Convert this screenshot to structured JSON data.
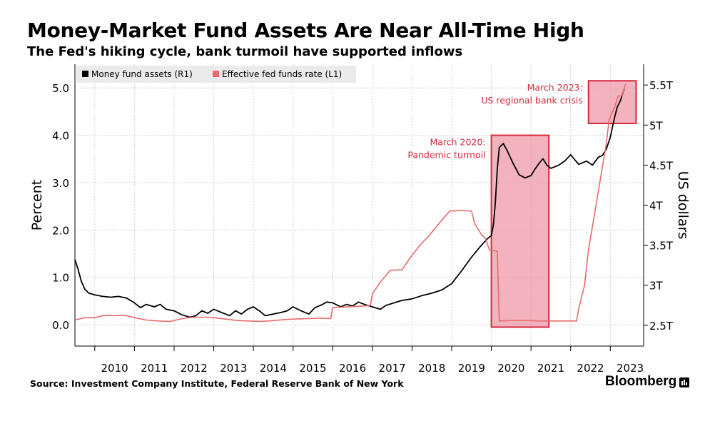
{
  "header": {
    "title": "Money-Market Fund Assets Are Near All-Time High",
    "subtitle": "The Fed's hiking cycle, bank turmoil have supported inflows"
  },
  "footer": {
    "source": "Source: Investment Company Institute, Federal Reserve Bank of New York",
    "brand": "Bloomberg"
  },
  "colors": {
    "assets_line": "#000000",
    "rate_line": "#e86a6a",
    "highlight_fill": "#ee9aaa",
    "highlight_stroke": "#d6283c",
    "annotation_text": "#d6283c",
    "grid": "#cfcfcf",
    "legend_bg": "#ebebeb"
  },
  "chart_data": {
    "type": "line",
    "x_ticks": [
      "2010",
      "2011",
      "2012",
      "2013",
      "2014",
      "2015",
      "2016",
      "2017",
      "2018",
      "2019",
      "2020",
      "2021",
      "2022",
      "2023"
    ],
    "left_axis": {
      "label": "Percent",
      "ticks": [
        "0.0",
        "1.0",
        "2.0",
        "3.0",
        "4.0",
        "5.0"
      ],
      "range": [
        -0.45,
        5.5
      ]
    },
    "right_axis": {
      "label": "US dollars",
      "ticks": [
        "2.5T",
        "3T",
        "3.5T",
        "4T",
        "4.5T",
        "5T",
        "5.5T"
      ],
      "range": [
        2.24,
        5.76
      ]
    },
    "legend": [
      {
        "name": "Money fund assets (R1)",
        "color": "#000000"
      },
      {
        "name": "Effective fed funds rate  (L1)",
        "color": "#e86a6a"
      }
    ],
    "grid": true,
    "legend_position": "top-left",
    "series": [
      {
        "name": "Money fund assets (R1)",
        "axis": "right",
        "points": [
          [
            2009.5,
            3.32
          ],
          [
            2009.58,
            3.2
          ],
          [
            2009.66,
            3.05
          ],
          [
            2009.75,
            2.95
          ],
          [
            2009.85,
            2.9
          ],
          [
            2010.0,
            2.88
          ],
          [
            2010.2,
            2.86
          ],
          [
            2010.4,
            2.85
          ],
          [
            2010.6,
            2.86
          ],
          [
            2010.8,
            2.84
          ],
          [
            2011.0,
            2.78
          ],
          [
            2011.15,
            2.72
          ],
          [
            2011.3,
            2.76
          ],
          [
            2011.5,
            2.73
          ],
          [
            2011.65,
            2.76
          ],
          [
            2011.8,
            2.7
          ],
          [
            2012.0,
            2.68
          ],
          [
            2012.2,
            2.63
          ],
          [
            2012.4,
            2.6
          ],
          [
            2012.55,
            2.62
          ],
          [
            2012.7,
            2.68
          ],
          [
            2012.85,
            2.65
          ],
          [
            2013.0,
            2.7
          ],
          [
            2013.2,
            2.66
          ],
          [
            2013.4,
            2.62
          ],
          [
            2013.55,
            2.68
          ],
          [
            2013.7,
            2.64
          ],
          [
            2013.85,
            2.7
          ],
          [
            2014.0,
            2.73
          ],
          [
            2014.15,
            2.68
          ],
          [
            2014.3,
            2.62
          ],
          [
            2014.5,
            2.64
          ],
          [
            2014.7,
            2.66
          ],
          [
            2014.85,
            2.68
          ],
          [
            2015.0,
            2.73
          ],
          [
            2015.2,
            2.68
          ],
          [
            2015.4,
            2.64
          ],
          [
            2015.55,
            2.72
          ],
          [
            2015.7,
            2.75
          ],
          [
            2015.85,
            2.79
          ],
          [
            2016.0,
            2.78
          ],
          [
            2016.2,
            2.73
          ],
          [
            2016.35,
            2.76
          ],
          [
            2016.5,
            2.74
          ],
          [
            2016.65,
            2.79
          ],
          [
            2016.8,
            2.76
          ],
          [
            2017.0,
            2.73
          ],
          [
            2017.2,
            2.7
          ],
          [
            2017.35,
            2.75
          ],
          [
            2017.55,
            2.78
          ],
          [
            2017.75,
            2.81
          ],
          [
            2018.0,
            2.83
          ],
          [
            2018.25,
            2.87
          ],
          [
            2018.5,
            2.9
          ],
          [
            2018.75,
            2.94
          ],
          [
            2019.0,
            3.02
          ],
          [
            2019.25,
            3.18
          ],
          [
            2019.5,
            3.35
          ],
          [
            2019.75,
            3.5
          ],
          [
            2019.9,
            3.58
          ],
          [
            2020.0,
            3.62
          ],
          [
            2020.05,
            3.75
          ],
          [
            2020.1,
            4.02
          ],
          [
            2020.15,
            4.45
          ],
          [
            2020.2,
            4.72
          ],
          [
            2020.3,
            4.77
          ],
          [
            2020.4,
            4.68
          ],
          [
            2020.55,
            4.52
          ],
          [
            2020.7,
            4.38
          ],
          [
            2020.85,
            4.34
          ],
          [
            2021.0,
            4.37
          ],
          [
            2021.1,
            4.45
          ],
          [
            2021.2,
            4.52
          ],
          [
            2021.3,
            4.58
          ],
          [
            2021.4,
            4.5
          ],
          [
            2021.5,
            4.46
          ],
          [
            2021.7,
            4.5
          ],
          [
            2021.85,
            4.55
          ],
          [
            2022.0,
            4.63
          ],
          [
            2022.2,
            4.51
          ],
          [
            2022.4,
            4.55
          ],
          [
            2022.55,
            4.5
          ],
          [
            2022.7,
            4.6
          ],
          [
            2022.8,
            4.62
          ],
          [
            2022.9,
            4.7
          ],
          [
            2023.0,
            4.85
          ],
          [
            2023.1,
            5.08
          ],
          [
            2023.17,
            5.22
          ],
          [
            2023.25,
            5.3
          ],
          [
            2023.35,
            5.45
          ]
        ]
      },
      {
        "name": "Effective fed funds rate  (L1)",
        "axis": "left",
        "points": [
          [
            2009.5,
            0.1
          ],
          [
            2009.75,
            0.15
          ],
          [
            2010.0,
            0.15
          ],
          [
            2010.25,
            0.2
          ],
          [
            2010.5,
            0.19
          ],
          [
            2010.75,
            0.2
          ],
          [
            2011.0,
            0.15
          ],
          [
            2011.3,
            0.1
          ],
          [
            2011.6,
            0.08
          ],
          [
            2011.9,
            0.07
          ],
          [
            2012.2,
            0.13
          ],
          [
            2012.5,
            0.16
          ],
          [
            2012.8,
            0.16
          ],
          [
            2013.0,
            0.15
          ],
          [
            2013.3,
            0.12
          ],
          [
            2013.6,
            0.09
          ],
          [
            2013.9,
            0.08
          ],
          [
            2014.2,
            0.07
          ],
          [
            2014.5,
            0.09
          ],
          [
            2014.8,
            0.11
          ],
          [
            2015.0,
            0.12
          ],
          [
            2015.4,
            0.13
          ],
          [
            2015.7,
            0.14
          ],
          [
            2015.95,
            0.13
          ],
          [
            2016.0,
            0.36
          ],
          [
            2016.4,
            0.38
          ],
          [
            2016.7,
            0.39
          ],
          [
            2016.95,
            0.41
          ],
          [
            2017.0,
            0.65
          ],
          [
            2017.2,
            0.9
          ],
          [
            2017.45,
            1.15
          ],
          [
            2017.75,
            1.16
          ],
          [
            2017.95,
            1.41
          ],
          [
            2018.2,
            1.68
          ],
          [
            2018.45,
            1.9
          ],
          [
            2018.7,
            2.16
          ],
          [
            2018.95,
            2.4
          ],
          [
            2019.25,
            2.41
          ],
          [
            2019.5,
            2.4
          ],
          [
            2019.58,
            2.14
          ],
          [
            2019.75,
            1.9
          ],
          [
            2019.85,
            1.83
          ],
          [
            2019.95,
            1.58
          ],
          [
            2020.15,
            1.55
          ],
          [
            2020.18,
            0.65
          ],
          [
            2020.2,
            0.08
          ],
          [
            2020.5,
            0.09
          ],
          [
            2020.8,
            0.09
          ],
          [
            2021.2,
            0.08
          ],
          [
            2021.5,
            0.08
          ],
          [
            2021.8,
            0.08
          ],
          [
            2022.15,
            0.08
          ],
          [
            2022.2,
            0.33
          ],
          [
            2022.35,
            0.83
          ],
          [
            2022.45,
            1.58
          ],
          [
            2022.6,
            2.33
          ],
          [
            2022.75,
            3.08
          ],
          [
            2022.9,
            3.83
          ],
          [
            2022.97,
            4.33
          ],
          [
            2023.1,
            4.58
          ],
          [
            2023.2,
            4.83
          ],
          [
            2023.3,
            4.83
          ],
          [
            2023.38,
            5.08
          ]
        ]
      }
    ],
    "annotations": [
      {
        "text": [
          "March 2020:",
          "Pandemic turmoil"
        ],
        "x_range": [
          2020.0,
          2021.45
        ],
        "y_range": [
          -0.05,
          4.0
        ]
      },
      {
        "text": [
          "March 2023:",
          "US regional bank crisis"
        ],
        "x_range": [
          2022.45,
          2023.65
        ],
        "y_range": [
          4.25,
          5.15
        ]
      }
    ]
  }
}
